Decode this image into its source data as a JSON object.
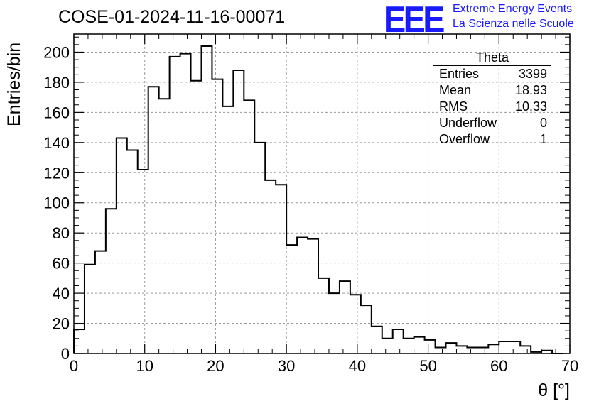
{
  "chart_data": {
    "type": "bar",
    "style": "step-histogram",
    "title": "COSE-01-2024-11-16-00071",
    "xlabel": "θ [°]",
    "ylabel": "Entries/bin",
    "xlim": [
      0,
      70
    ],
    "ylim": [
      0,
      212
    ],
    "x_ticks": [
      "0",
      "10",
      "20",
      "30",
      "40",
      "50",
      "60",
      "70"
    ],
    "y_ticks": [
      "0",
      "20",
      "40",
      "60",
      "80",
      "100",
      "120",
      "140",
      "160",
      "180",
      "200"
    ],
    "grid": true,
    "bin_width": 1.5,
    "bin_start": 0,
    "values": [
      16,
      59,
      68,
      96,
      143,
      135,
      122,
      177,
      169,
      197,
      199,
      181,
      204,
      182,
      164,
      188,
      168,
      140,
      115,
      112,
      72,
      77,
      76,
      50,
      40,
      48,
      39,
      32,
      18,
      10,
      16,
      10,
      11,
      9,
      4,
      7,
      5,
      4,
      4,
      6,
      8,
      8,
      5,
      1,
      2,
      0
    ],
    "stats_box": {
      "title": "Theta",
      "rows": [
        {
          "label": "Entries",
          "value": "3399"
        },
        {
          "label": "Mean",
          "value": "18.93"
        },
        {
          "label": "RMS",
          "value": "10.33"
        },
        {
          "label": "Underflow",
          "value": "0"
        },
        {
          "label": "Overflow",
          "value": "1"
        }
      ]
    },
    "line_color": "#000000"
  },
  "logo": {
    "mark": "EEE",
    "line1": "Extreme Energy Events",
    "line2": "La Scienza nelle Scuole",
    "color": "#1a1aff"
  }
}
